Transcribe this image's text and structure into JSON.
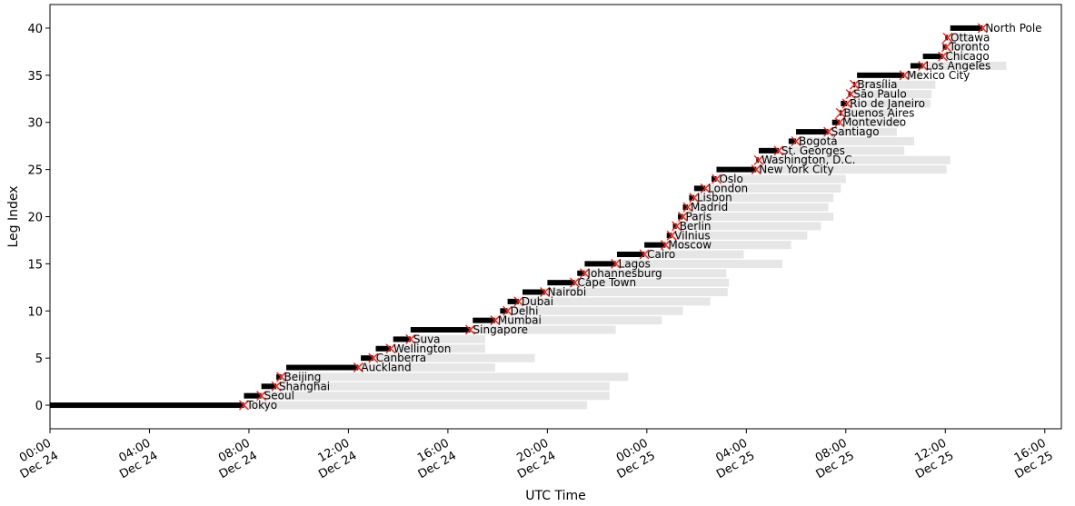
{
  "chart_data": {
    "type": "bar",
    "title": "",
    "xlabel": "UTC Time",
    "ylabel": "Leg Index",
    "x_unit": "UTC datetime (hours from 2000-12-24 00:00 shown as ticks)",
    "xlim": [
      "Dec 24 00:00",
      "Dec 25 16:40"
    ],
    "ylim": [
      -2.5,
      42.5
    ],
    "x_ticks": [
      {
        "line1": "00:00",
        "line2": "Dec 24",
        "hour": 0
      },
      {
        "line1": "04:00",
        "line2": "Dec 24",
        "hour": 4
      },
      {
        "line1": "08:00",
        "line2": "Dec 24",
        "hour": 8
      },
      {
        "line1": "12:00",
        "line2": "Dec 24",
        "hour": 12
      },
      {
        "line1": "16:00",
        "line2": "Dec 24",
        "hour": 16
      },
      {
        "line1": "20:00",
        "line2": "Dec 24",
        "hour": 20
      },
      {
        "line1": "00:00",
        "line2": "Dec 25",
        "hour": 24
      },
      {
        "line1": "04:00",
        "line2": "Dec 25",
        "hour": 28
      },
      {
        "line1": "08:00",
        "line2": "Dec 25",
        "hour": 32
      },
      {
        "line1": "12:00",
        "line2": "Dec 25",
        "hour": 36
      },
      {
        "line1": "16:00",
        "line2": "Dec 25",
        "hour": 40
      }
    ],
    "y_ticks": [
      0,
      5,
      10,
      15,
      20,
      25,
      30,
      35,
      40
    ],
    "colors": {
      "window": "#e6e6e6",
      "leg": "#000000",
      "marker": "#e8231a"
    },
    "legs": [
      {
        "index": 0,
        "city": "Tokyo",
        "window": [
          7.8,
          21.6
        ],
        "leg": [
          0.0,
          7.8
        ],
        "arrival": 7.8
      },
      {
        "index": 1,
        "city": "Seoul",
        "window": [
          8.5,
          22.5
        ],
        "leg": [
          7.8,
          8.5
        ],
        "arrival": 8.5
      },
      {
        "index": 2,
        "city": "Shanghai",
        "window": [
          9.1,
          22.5
        ],
        "leg": [
          8.5,
          9.1
        ],
        "arrival": 9.1
      },
      {
        "index": 3,
        "city": "Beijing",
        "window": [
          9.3,
          23.25
        ],
        "leg": [
          9.1,
          9.3
        ],
        "arrival": 9.3
      },
      {
        "index": 4,
        "city": "Auckland",
        "window": [
          12.4,
          17.9
        ],
        "leg": [
          9.5,
          12.4
        ],
        "arrival": 12.4
      },
      {
        "index": 5,
        "city": "Canberra",
        "window": [
          13.0,
          19.5
        ],
        "leg": [
          12.5,
          13.0
        ],
        "arrival": 13.0
      },
      {
        "index": 6,
        "city": "Wellington",
        "window": [
          13.7,
          17.5
        ],
        "leg": [
          13.1,
          13.7
        ],
        "arrival": 13.7
      },
      {
        "index": 7,
        "city": "Suva",
        "window": [
          14.5,
          17.5
        ],
        "leg": [
          13.8,
          14.5
        ],
        "arrival": 14.5
      },
      {
        "index": 8,
        "city": "Singapore",
        "window": [
          16.9,
          22.75
        ],
        "leg": [
          14.5,
          16.9
        ],
        "arrival": 16.9
      },
      {
        "index": 9,
        "city": "Mumbai",
        "window": [
          17.9,
          24.6
        ],
        "leg": [
          17.0,
          17.9
        ],
        "arrival": 17.9
      },
      {
        "index": 10,
        "city": "Delhi",
        "window": [
          18.4,
          25.45
        ],
        "leg": [
          18.1,
          18.4
        ],
        "arrival": 18.4
      },
      {
        "index": 11,
        "city": "Dubai",
        "window": [
          18.85,
          26.55
        ],
        "leg": [
          18.4,
          18.85
        ],
        "arrival": 18.85
      },
      {
        "index": 12,
        "city": "Nairobi",
        "window": [
          19.9,
          27.25
        ],
        "leg": [
          19.0,
          19.9
        ],
        "arrival": 19.9
      },
      {
        "index": 13,
        "city": "Cape Town",
        "window": [
          21.1,
          27.3
        ],
        "leg": [
          20.0,
          21.1
        ],
        "arrival": 21.1
      },
      {
        "index": 14,
        "city": "Johannesburg",
        "window": [
          21.5,
          27.2
        ],
        "leg": [
          21.2,
          21.5
        ],
        "arrival": 21.5
      },
      {
        "index": 15,
        "city": "Lagos",
        "window": [
          22.75,
          29.45
        ],
        "leg": [
          21.5,
          22.75
        ],
        "arrival": 22.75
      },
      {
        "index": 16,
        "city": "Cairo",
        "window": [
          23.9,
          27.9
        ],
        "leg": [
          22.8,
          23.9
        ],
        "arrival": 23.9
      },
      {
        "index": 17,
        "city": "Moscow",
        "window": [
          24.75,
          29.8
        ],
        "leg": [
          23.9,
          24.75
        ],
        "arrival": 24.75
      },
      {
        "index": 18,
        "city": "Vilnius",
        "window": [
          25.0,
          30.45
        ],
        "leg": [
          24.8,
          25.0
        ],
        "arrival": 25.0
      },
      {
        "index": 19,
        "city": "Berlin",
        "window": [
          25.2,
          31.0
        ],
        "leg": [
          25.05,
          25.2
        ],
        "arrival": 25.2
      },
      {
        "index": 20,
        "city": "Paris",
        "window": [
          25.45,
          31.5
        ],
        "leg": [
          25.25,
          25.45
        ],
        "arrival": 25.45
      },
      {
        "index": 21,
        "city": "Madrid",
        "window": [
          25.65,
          31.3
        ],
        "leg": [
          25.45,
          25.65
        ],
        "arrival": 25.65
      },
      {
        "index": 22,
        "city": "Lisbon",
        "window": [
          25.9,
          31.5
        ],
        "leg": [
          25.7,
          25.9
        ],
        "arrival": 25.9
      },
      {
        "index": 23,
        "city": "London",
        "window": [
          26.35,
          31.8
        ],
        "leg": [
          25.9,
          26.35
        ],
        "arrival": 26.35
      },
      {
        "index": 24,
        "city": "Oslo",
        "window": [
          26.8,
          32.0
        ],
        "leg": [
          26.6,
          26.8
        ],
        "arrival": 26.8
      },
      {
        "index": 25,
        "city": "New York City",
        "window": [
          28.4,
          36.05
        ],
        "leg": [
          26.8,
          28.4
        ],
        "arrival": 28.4
      },
      {
        "index": 26,
        "city": "Washington, D.C.",
        "window": [
          28.5,
          36.2
        ],
        "leg": [
          28.4,
          28.5
        ],
        "arrival": 28.5
      },
      {
        "index": 27,
        "city": "St. Georges",
        "window": [
          29.3,
          34.35
        ],
        "leg": [
          28.5,
          29.3
        ],
        "arrival": 29.3
      },
      {
        "index": 28,
        "city": "Bogotá",
        "window": [
          30.0,
          34.75
        ],
        "leg": [
          29.7,
          30.0
        ],
        "arrival": 30.0
      },
      {
        "index": 29,
        "city": "Santiago",
        "window": [
          31.3,
          34.05
        ],
        "leg": [
          30.0,
          31.3
        ],
        "arrival": 31.3
      },
      {
        "index": 30,
        "city": "Montevideo",
        "window": [
          31.75,
          34.25
        ],
        "leg": [
          31.45,
          31.75
        ],
        "arrival": 31.75
      },
      {
        "index": 31,
        "city": "Buenos Aires",
        "window": [
          31.8,
          34.1
        ],
        "leg": [
          31.75,
          31.8
        ],
        "arrival": 31.8
      },
      {
        "index": 32,
        "city": "Rio de Janeiro",
        "window": [
          32.05,
          35.4
        ],
        "leg": [
          31.8,
          32.05
        ],
        "arrival": 32.05
      },
      {
        "index": 33,
        "city": "São Paulo",
        "window": [
          32.2,
          35.45
        ],
        "leg": [
          32.1,
          32.2
        ],
        "arrival": 32.2
      },
      {
        "index": 34,
        "city": "Brasília",
        "window": [
          32.35,
          35.6
        ],
        "leg": [
          32.3,
          32.35
        ],
        "arrival": 32.35
      },
      {
        "index": 35,
        "city": "Mexico City",
        "window": [
          34.35,
          35.0
        ],
        "leg": [
          32.45,
          34.35
        ],
        "arrival": 34.35
      },
      {
        "index": 36,
        "city": "Los Angeles",
        "window": [
          35.1,
          38.45
        ],
        "leg": [
          34.6,
          35.1
        ],
        "arrival": 35.1
      },
      {
        "index": 37,
        "city": "Chicago",
        "window": [
          35.9,
          37.0
        ],
        "leg": [
          35.1,
          35.9
        ],
        "arrival": 35.9
      },
      {
        "index": 38,
        "city": "Toronto",
        "window": [
          36.05,
          37.3
        ],
        "leg": [
          35.9,
          36.05
        ],
        "arrival": 36.05
      },
      {
        "index": 39,
        "city": "Ottawa",
        "window": [
          36.1,
          37.1
        ],
        "leg": [
          36.0,
          36.1
        ],
        "arrival": 36.1
      },
      {
        "index": 40,
        "city": "North Pole",
        "window": [
          37.5,
          37.6
        ],
        "leg": [
          36.2,
          37.5
        ],
        "arrival": 37.5
      }
    ]
  }
}
